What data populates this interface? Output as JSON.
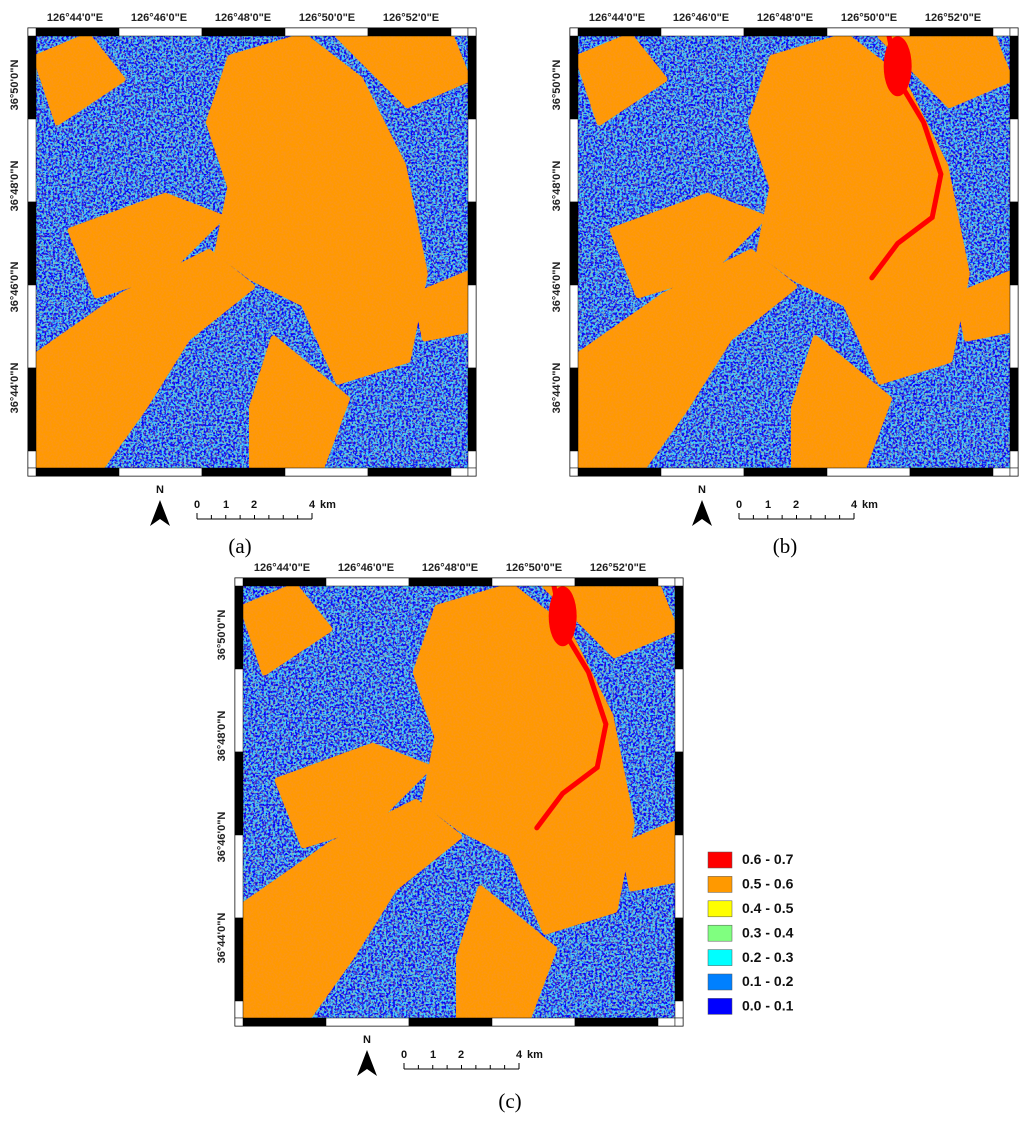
{
  "panels": [
    {
      "label": "(a)",
      "lon_labels": [
        "126°44'0\"E",
        "126°46'0\"E",
        "126°48'0\"E",
        "126°50'0\"E",
        "126°52'0\"E"
      ],
      "lat_labels": [
        "36°50'0\"N",
        "36°48'0\"N",
        "36°46'0\"N",
        "36°44'0\"N"
      ],
      "north": "N",
      "scale_labels": [
        "0",
        "1",
        "2",
        "4"
      ],
      "scale_unit": "km"
    },
    {
      "label": "(b)",
      "lon_labels": [
        "126°44'0\"E",
        "126°46'0\"E",
        "126°48'0\"E",
        "126°50'0\"E",
        "126°52'0\"E"
      ],
      "lat_labels": [
        "36°50'0\"N",
        "36°48'0\"N",
        "36°46'0\"N",
        "36°44'0\"N"
      ],
      "north": "N",
      "scale_labels": [
        "0",
        "1",
        "2",
        "4"
      ],
      "scale_unit": "km"
    },
    {
      "label": "(c)",
      "lon_labels": [
        "126°44'0\"E",
        "126°46'0\"E",
        "126°48'0\"E",
        "126°50'0\"E",
        "126°52'0\"E"
      ],
      "lat_labels": [
        "36°50'0\"N",
        "36°48'0\"N",
        "36°46'0\"N",
        "36°44'0\"N"
      ],
      "north": "N",
      "scale_labels": [
        "0",
        "1",
        "2",
        "4"
      ],
      "scale_unit": "km"
    }
  ],
  "legend": [
    {
      "label": "0.6 - 0.7",
      "color": "#ff0000"
    },
    {
      "label": "0.5 - 0.6",
      "color": "#ff9900"
    },
    {
      "label": "0.4 - 0.5",
      "color": "#ffff00"
    },
    {
      "label": "0.3 - 0.4",
      "color": "#80ff80"
    },
    {
      "label": "0.2 - 0.3",
      "color": "#00ffff"
    },
    {
      "label": "0.1 - 0.2",
      "color": "#0080ff"
    },
    {
      "label": "0.0 - 0.1",
      "color": "#0000ff"
    }
  ]
}
